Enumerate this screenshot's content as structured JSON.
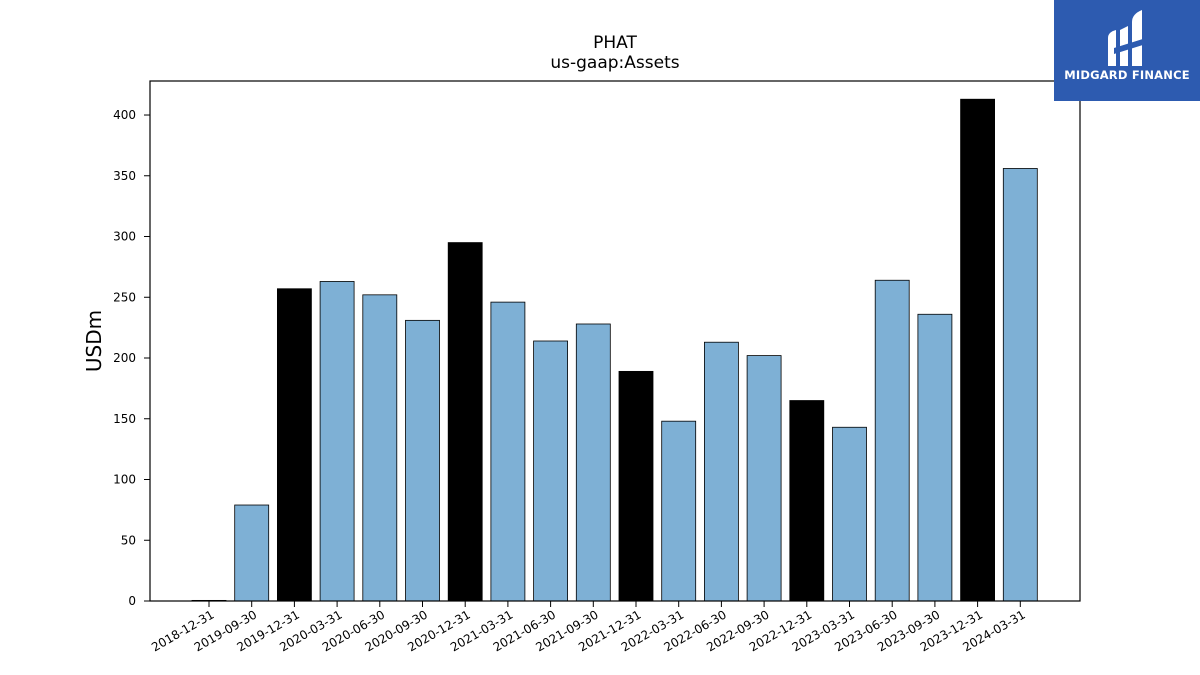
{
  "chart_data": {
    "type": "bar",
    "title": "PHAT",
    "subtitle": "us-gaap:Assets",
    "xlabel": "",
    "ylabel": "USDm",
    "ylim": [
      0,
      428
    ],
    "yticks": [
      0,
      50,
      100,
      150,
      200,
      250,
      300,
      350,
      400
    ],
    "categories": [
      "2018-12-31",
      "2019-09-30",
      "2019-12-31",
      "2020-03-31",
      "2020-06-30",
      "2020-09-30",
      "2020-12-31",
      "2021-03-31",
      "2021-06-30",
      "2021-09-30",
      "2021-12-31",
      "2022-03-31",
      "2022-06-30",
      "2022-09-30",
      "2022-12-31",
      "2023-03-31",
      "2023-06-30",
      "2023-09-30",
      "2023-12-31",
      "2024-03-31"
    ],
    "values": [
      0.5,
      79,
      257,
      263,
      252,
      231,
      295,
      246,
      214,
      228,
      189,
      148,
      213,
      202,
      165,
      143,
      264,
      236,
      413,
      356
    ],
    "bar_colors": [
      "#7eb0d5",
      "#7eb0d5",
      "#000000",
      "#7eb0d5",
      "#7eb0d5",
      "#7eb0d5",
      "#000000",
      "#7eb0d5",
      "#7eb0d5",
      "#7eb0d5",
      "#000000",
      "#7eb0d5",
      "#7eb0d5",
      "#7eb0d5",
      "#000000",
      "#7eb0d5",
      "#7eb0d5",
      "#7eb0d5",
      "#000000",
      "#7eb0d5"
    ],
    "grid": false,
    "legend": "none"
  },
  "logo": {
    "text": "MIDGARD FINANCE",
    "background": "#2d5bb0"
  }
}
